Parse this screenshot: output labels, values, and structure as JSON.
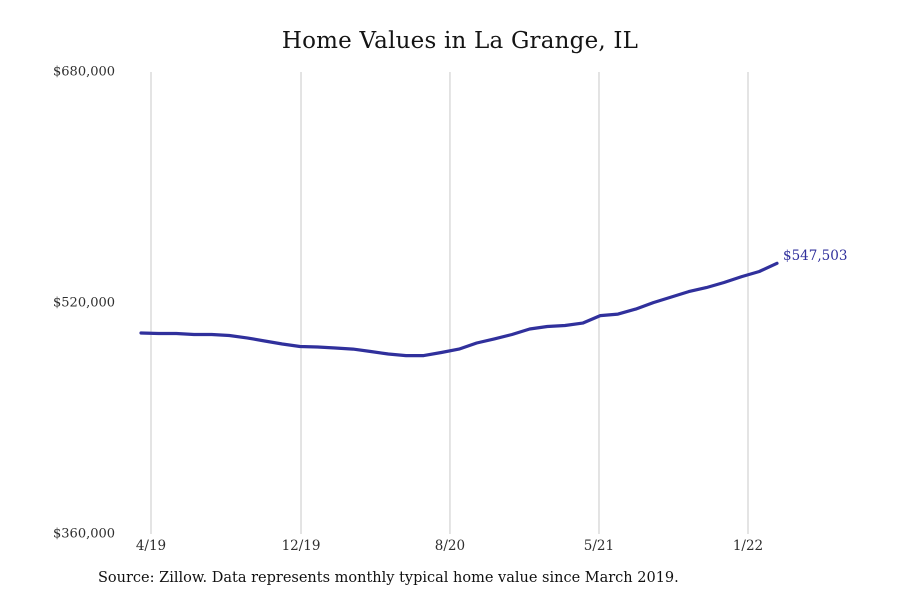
{
  "chart_data": {
    "type": "line",
    "title": "Home Values in La Grange, IL",
    "source_note": "Source: Zillow. Data represents monthly typical home value since March 2019.",
    "last_value_label": "$547,503",
    "line_color": "#30309c",
    "grid_color": "#c9c9c9",
    "grid": "vertical-only",
    "legend_position": "none",
    "ylim": [
      360000,
      680000
    ],
    "y_ticks": [
      {
        "label": "$680,000",
        "value": 680000
      },
      {
        "label": "$520,000",
        "value": 520000
      },
      {
        "label": "$360,000",
        "value": 360000
      }
    ],
    "x_ticks": [
      {
        "label": "4/19",
        "pos": 0.0157
      },
      {
        "label": "12/19",
        "pos": 0.2516
      },
      {
        "label": "8/20",
        "pos": 0.4858
      },
      {
        "label": "5/21",
        "pos": 0.7201
      },
      {
        "label": "1/22",
        "pos": 0.9544
      }
    ],
    "x": [
      "3/19",
      "4/19",
      "5/19",
      "6/19",
      "7/19",
      "8/19",
      "9/19",
      "10/19",
      "11/19",
      "12/19",
      "1/20",
      "2/20",
      "3/20",
      "4/20",
      "5/20",
      "6/20",
      "7/20",
      "8/20",
      "9/20",
      "10/20",
      "11/20",
      "12/20",
      "1/21",
      "2/21",
      "3/21",
      "4/21",
      "5/21",
      "6/21",
      "7/21",
      "8/21",
      "9/21",
      "10/21",
      "11/21",
      "12/21",
      "1/22",
      "2/22",
      "3/22"
    ],
    "values": [
      499200,
      498900,
      498900,
      498200,
      498200,
      497500,
      495800,
      493700,
      491600,
      489900,
      489500,
      488800,
      488100,
      486400,
      484700,
      483600,
      483600,
      485700,
      488100,
      492300,
      495100,
      498200,
      502000,
      503700,
      504400,
      506100,
      511300,
      512300,
      515800,
      520300,
      524100,
      527900,
      530700,
      534200,
      538300,
      541800,
      547503
    ],
    "xlabel": "",
    "ylabel": ""
  }
}
